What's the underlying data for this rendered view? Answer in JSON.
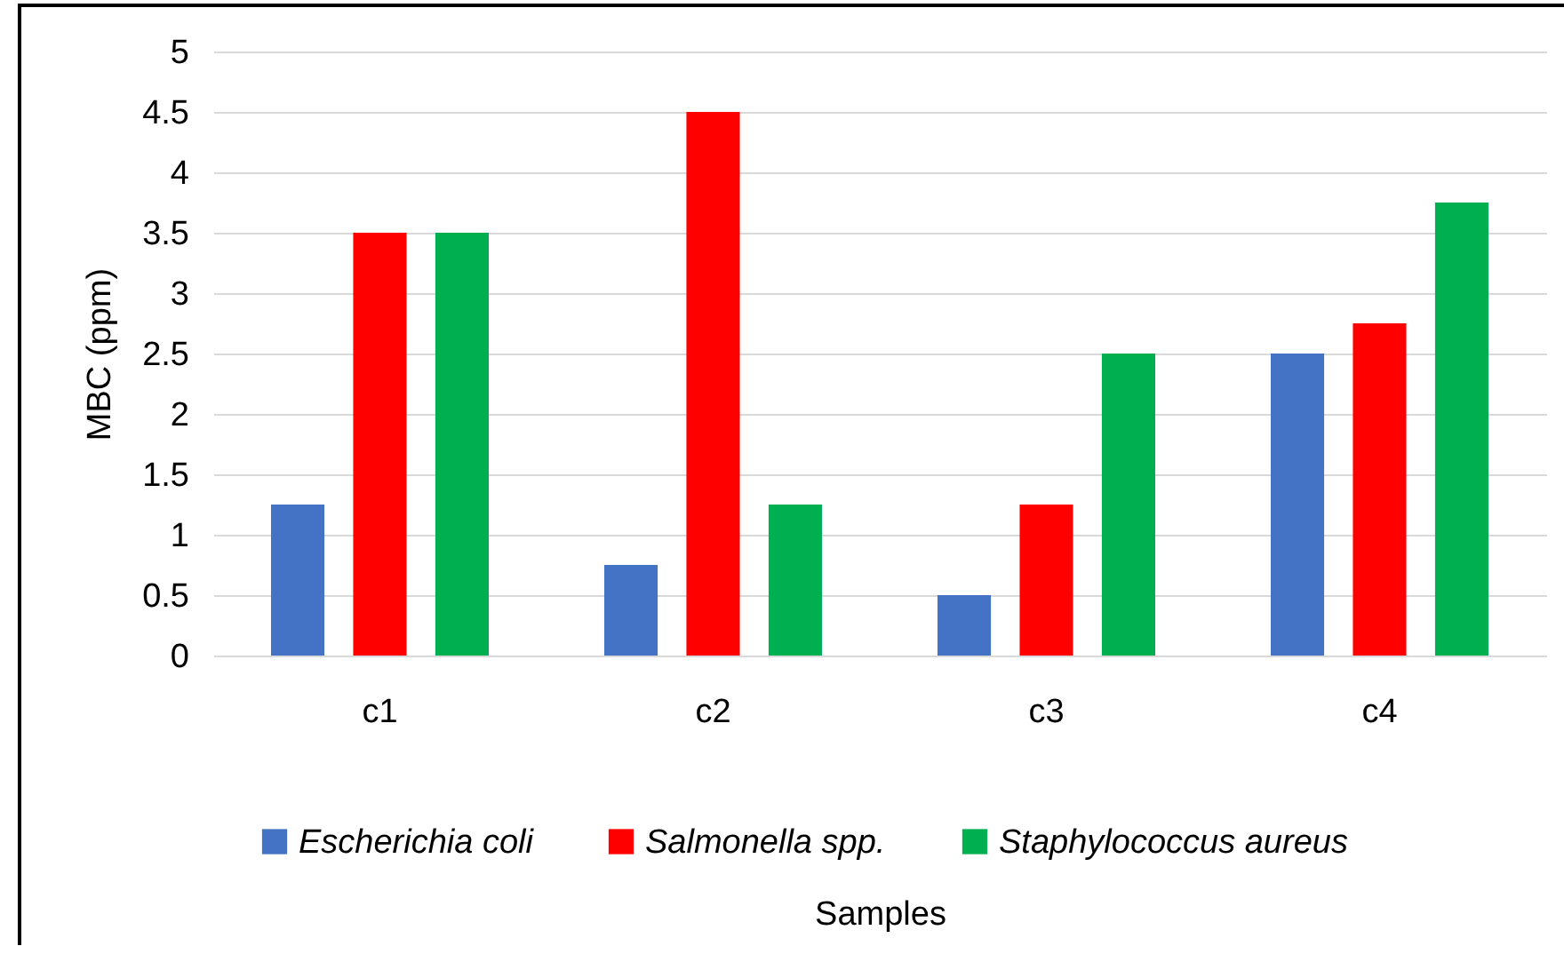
{
  "chart_data": {
    "type": "bar",
    "xlabel": "Samples",
    "ylabel": "MBC (ppm)",
    "categories": [
      "c1",
      "c2",
      "c3",
      "c4"
    ],
    "series": [
      {
        "name": "Escherichia coli",
        "color": "#4472c4",
        "values": [
          1.25,
          0.75,
          0.5,
          2.5
        ]
      },
      {
        "name": "Salmonella spp.",
        "color": "#ff0000",
        "values": [
          3.5,
          4.5,
          1.25,
          2.75
        ]
      },
      {
        "name": "Staphylococcus aureus",
        "color": "#00b050",
        "values": [
          3.5,
          1.25,
          2.5,
          3.75
        ]
      }
    ],
    "ylim": [
      0,
      5
    ],
    "yticks": [
      0,
      0.5,
      1,
      1.5,
      2,
      2.5,
      3,
      3.5,
      4,
      4.5,
      5
    ],
    "grid": "y",
    "legend": "bottom"
  }
}
